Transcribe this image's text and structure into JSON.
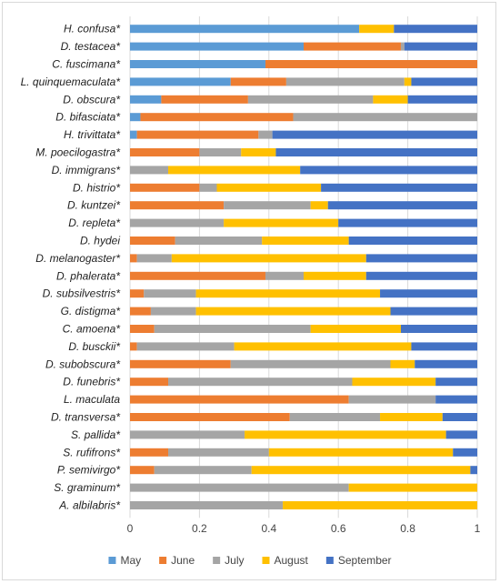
{
  "chart_data": {
    "type": "bar",
    "orientation": "horizontal",
    "stacked": true,
    "title": "",
    "xlabel": "",
    "ylabel": "",
    "xlim": [
      0,
      1
    ],
    "xticks": [
      "0",
      "0.2",
      "0.4",
      "0.6",
      "0.8",
      "1"
    ],
    "grid": true,
    "legend_position": "bottom",
    "categories": [
      "H. confusa*",
      "D. testacea*",
      "C. fuscimana*",
      "L. quinquemaculata*",
      "D. obscura*",
      "D. bifasciata*",
      "H. trivittata*",
      "M. poecilogastra*",
      "D. immigrans*",
      "D. histrio*",
      "D. kuntzei*",
      "D. repleta*",
      "D. hydei",
      "D. melanogaster*",
      "D. phalerata*",
      "D. subsilvestris*",
      "G. distigma*",
      "C. amoena*",
      "D. busckii*",
      "D. subobscura*",
      "D. funebris*",
      "L. maculata",
      "D. transversa*",
      "S. pallida*",
      "S. rufifrons*",
      "P. semivirgo*",
      "S. graminum*",
      "A. albilabris*"
    ],
    "series": [
      {
        "name": "May",
        "color": "#5b9bd5",
        "values": [
          0.66,
          0.5,
          0.39,
          0.29,
          0.09,
          0.03,
          0.02,
          0,
          0,
          0,
          0,
          0,
          0,
          0,
          0,
          0,
          0,
          0,
          0,
          0,
          0,
          0,
          0,
          0,
          0,
          0,
          0,
          0
        ]
      },
      {
        "name": "June",
        "color": "#ed7d31",
        "values": [
          0,
          0.28,
          0.61,
          0.16,
          0.25,
          0.44,
          0.35,
          0.2,
          0,
          0.2,
          0.27,
          0,
          0.13,
          0.02,
          0.39,
          0.04,
          0.06,
          0.07,
          0.02,
          0.29,
          0.11,
          0.63,
          0.46,
          0,
          0.11,
          0.07,
          0,
          0
        ]
      },
      {
        "name": "July",
        "color": "#a5a5a5",
        "values": [
          0,
          0.01,
          0,
          0.34,
          0.36,
          0.53,
          0.04,
          0.12,
          0.11,
          0.05,
          0.25,
          0.27,
          0.25,
          0.1,
          0.11,
          0.15,
          0.13,
          0.45,
          0.28,
          0.46,
          0.53,
          0.25,
          0.26,
          0.33,
          0.29,
          0.28,
          0.63,
          0.44
        ]
      },
      {
        "name": "August",
        "color": "#ffc000",
        "values": [
          0.1,
          0,
          0,
          0.02,
          0.1,
          0,
          0,
          0.1,
          0.38,
          0.3,
          0.05,
          0.33,
          0.25,
          0.56,
          0.18,
          0.53,
          0.56,
          0.26,
          0.51,
          0.07,
          0.24,
          0,
          0.18,
          0.58,
          0.53,
          0.63,
          0.37,
          0.56
        ]
      },
      {
        "name": "September",
        "color": "#4472c4",
        "values": [
          0.24,
          0.21,
          0,
          0.19,
          0.2,
          0,
          0.59,
          0.58,
          0.51,
          0.45,
          0.43,
          0.4,
          0.37,
          0.32,
          0.32,
          0.28,
          0.25,
          0.22,
          0.19,
          0.18,
          0.12,
          0.12,
          0.1,
          0.09,
          0.07,
          0.02,
          0,
          0
        ]
      }
    ]
  }
}
